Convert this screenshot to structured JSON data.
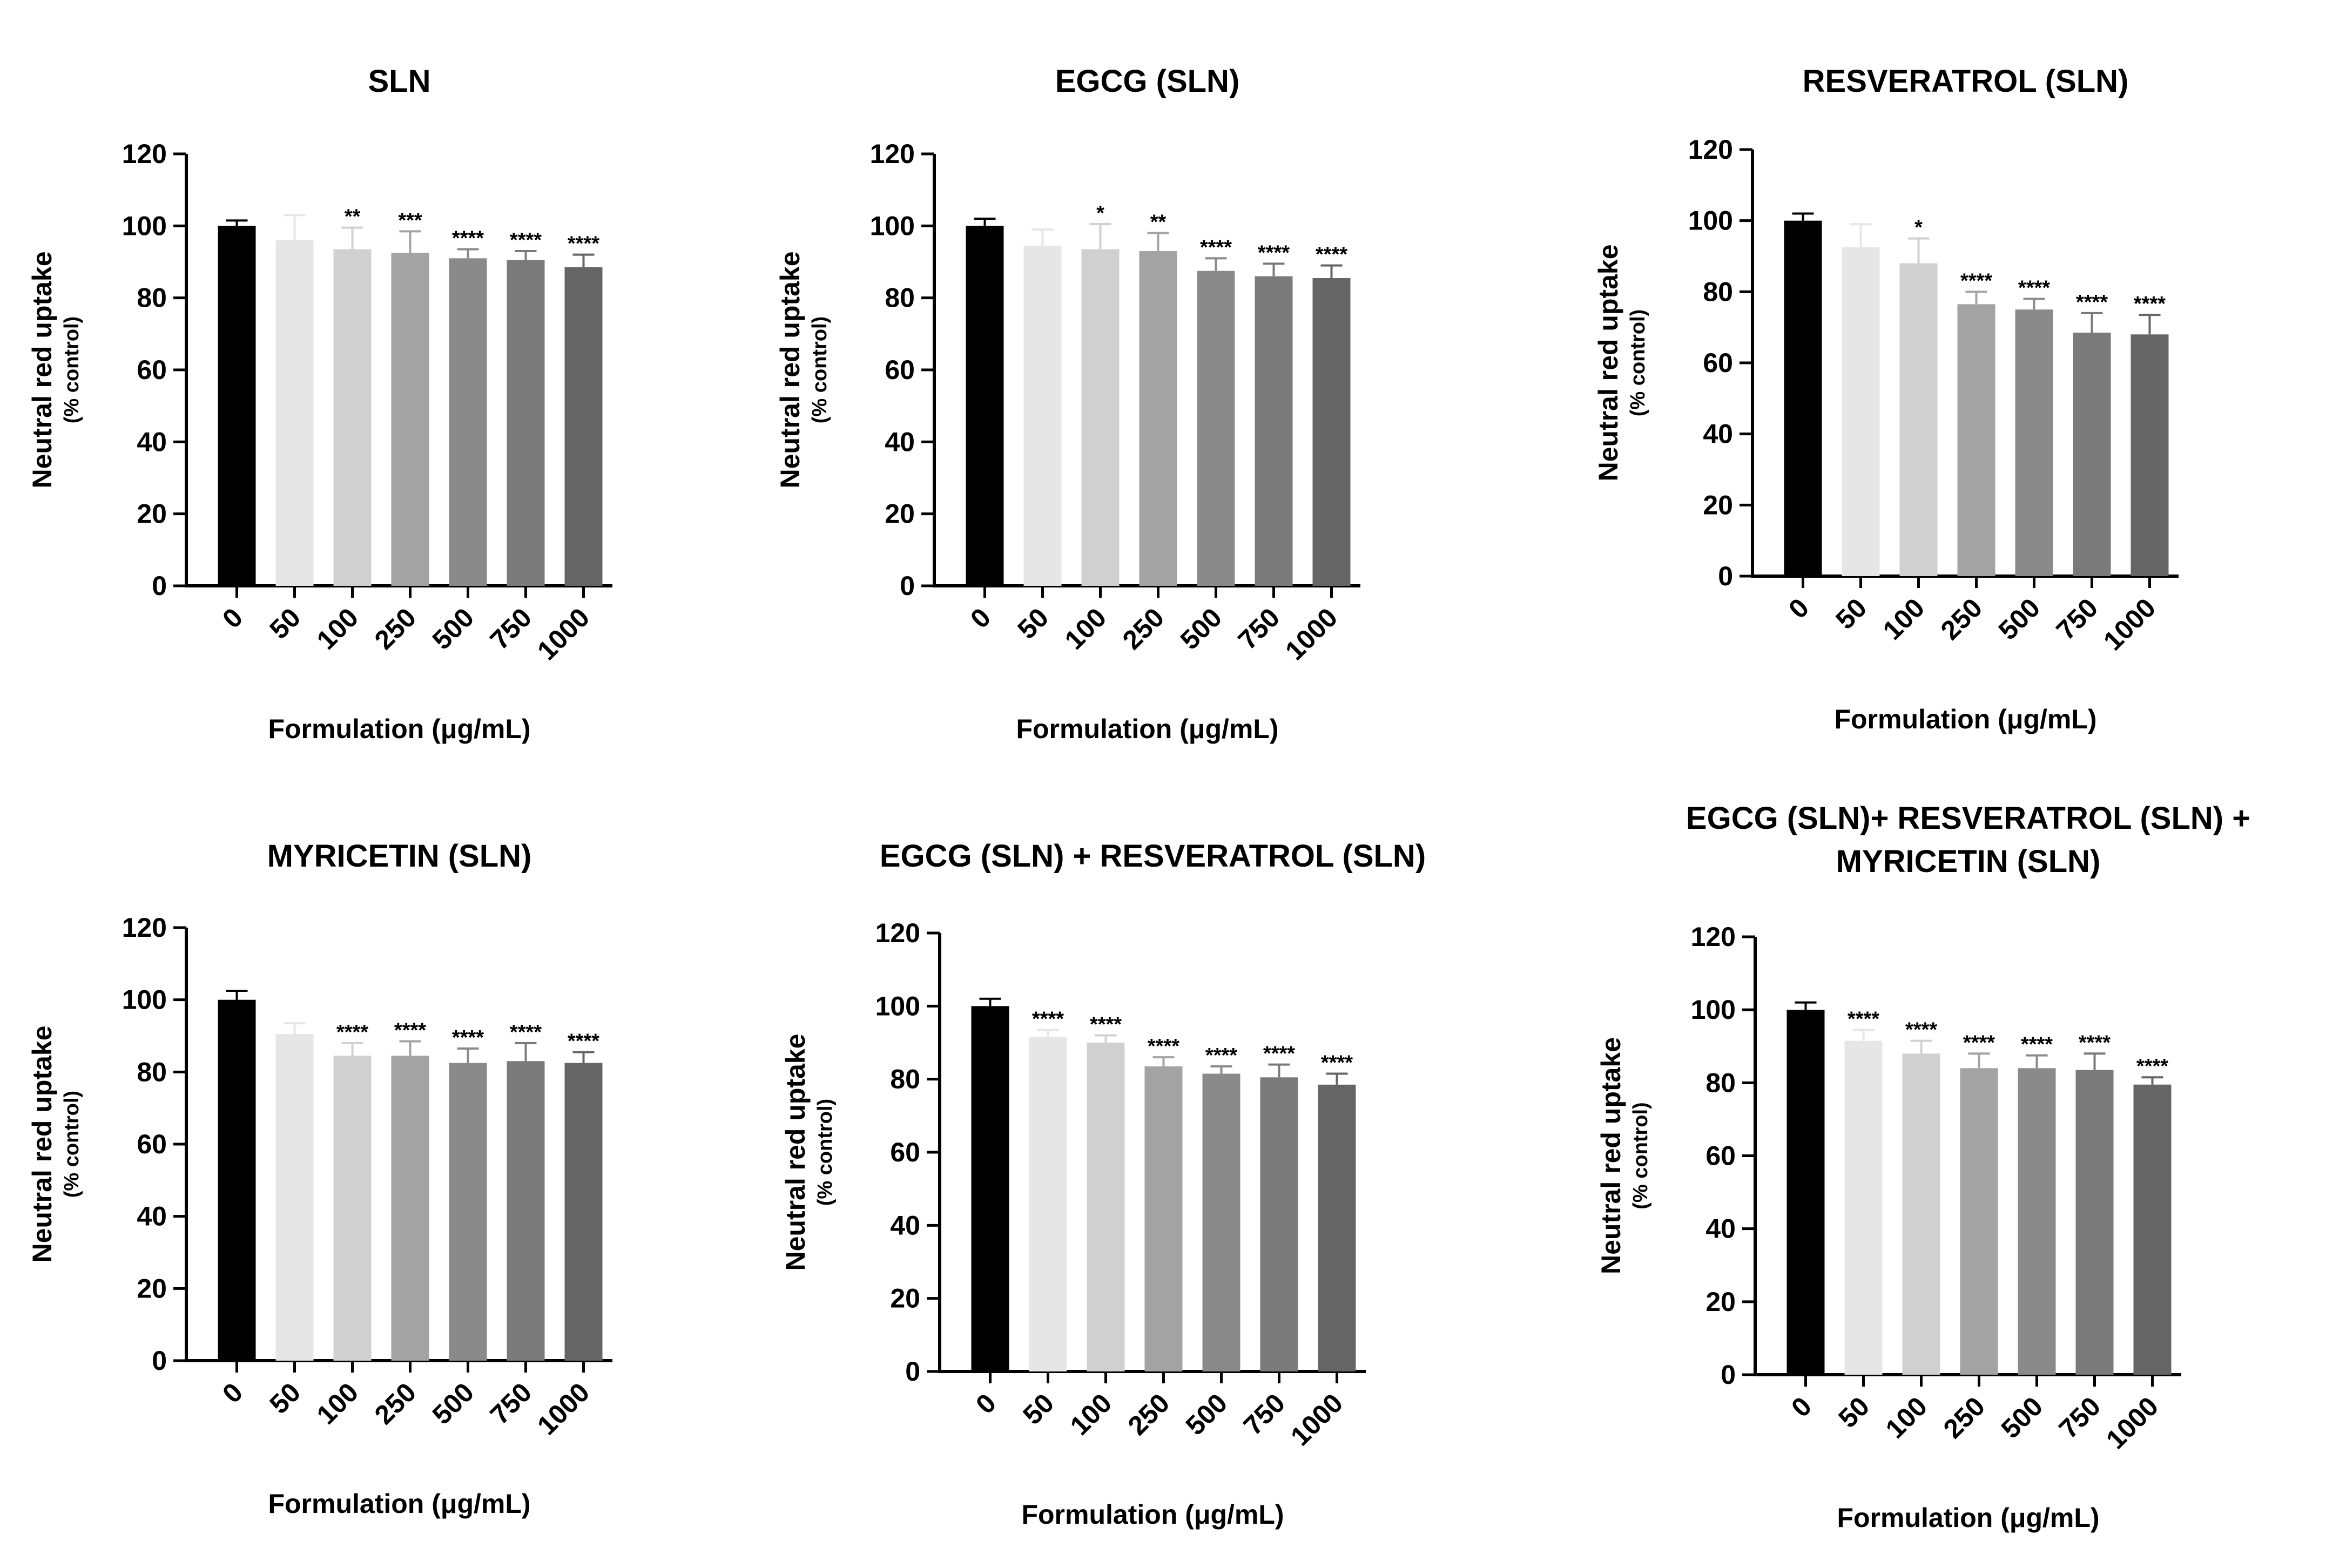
{
  "figure": {
    "x_axis_label": "Formulation (μg/mL)",
    "y_axis_label": "Neutral red uptake",
    "y_axis_sublabel": "(% control)"
  },
  "chart_data": [
    {
      "type": "bar",
      "title_lines": [
        "SLN"
      ],
      "xlabel": "Formulation (μg/mL)",
      "ylabel": "Neutral red uptake (% control)",
      "categories": [
        "0",
        "50",
        "100",
        "250",
        "500",
        "750",
        "1000"
      ],
      "values": [
        100,
        96,
        93.5,
        92.5,
        91,
        90.5,
        88.5
      ],
      "errors": [
        1.5,
        7,
        6,
        6,
        2.5,
        2.5,
        3.5
      ],
      "significance": [
        "",
        "",
        "**",
        "***",
        "****",
        "****",
        "****"
      ],
      "ylim": [
        0,
        120
      ],
      "yticks": [
        0,
        20,
        40,
        60,
        80,
        100,
        120
      ],
      "colors": [
        "#000000",
        "#e6e6e6",
        "#d0d0d0",
        "#a3a3a3",
        "#8a8a8a",
        "#7a7a7a",
        "#656565"
      ]
    },
    {
      "type": "bar",
      "title_lines": [
        "EGCG (SLN)"
      ],
      "xlabel": "Formulation (μg/mL)",
      "ylabel": "Neutral red uptake (% control)",
      "categories": [
        "0",
        "50",
        "100",
        "250",
        "500",
        "750",
        "1000"
      ],
      "values": [
        100,
        94.5,
        93.5,
        93,
        87.5,
        86,
        85.5
      ],
      "errors": [
        2,
        4.5,
        7,
        5,
        3.5,
        3.5,
        3.5
      ],
      "significance": [
        "",
        "",
        "*",
        "**",
        "****",
        "****",
        "****"
      ],
      "ylim": [
        0,
        120
      ],
      "yticks": [
        0,
        20,
        40,
        60,
        80,
        100,
        120
      ],
      "colors": [
        "#000000",
        "#e6e6e6",
        "#d0d0d0",
        "#a3a3a3",
        "#8a8a8a",
        "#7a7a7a",
        "#656565"
      ]
    },
    {
      "type": "bar",
      "title_lines": [
        "RESVERATROL (SLN)"
      ],
      "xlabel": "Formulation (μg/mL)",
      "ylabel": "Neutral red uptake (% control)",
      "categories": [
        "0",
        "50",
        "100",
        "250",
        "500",
        "750",
        "1000"
      ],
      "values": [
        100,
        92.5,
        88,
        76.5,
        75,
        68.5,
        68
      ],
      "errors": [
        2,
        6.5,
        7,
        3.5,
        3,
        5.5,
        5.5
      ],
      "significance": [
        "",
        "",
        "*",
        "****",
        "****",
        "****",
        "****"
      ],
      "ylim": [
        0,
        120
      ],
      "yticks": [
        0,
        20,
        40,
        60,
        80,
        100,
        120
      ],
      "colors": [
        "#000000",
        "#e6e6e6",
        "#d0d0d0",
        "#a3a3a3",
        "#8a8a8a",
        "#7a7a7a",
        "#656565"
      ]
    },
    {
      "type": "bar",
      "title_lines": [
        "MYRICETIN (SLN)"
      ],
      "xlabel": "Formulation (μg/mL)",
      "ylabel": "Neutral red uptake (% control)",
      "categories": [
        "0",
        "50",
        "100",
        "250",
        "500",
        "750",
        "1000"
      ],
      "values": [
        100,
        90.5,
        84.5,
        84.5,
        82.5,
        83,
        82.5
      ],
      "errors": [
        2.5,
        3,
        3.5,
        4,
        4,
        5,
        3
      ],
      "significance": [
        "",
        "",
        "****",
        "****",
        "****",
        "****",
        "****"
      ],
      "ylim": [
        0,
        120
      ],
      "yticks": [
        0,
        20,
        40,
        60,
        80,
        100,
        120
      ],
      "colors": [
        "#000000",
        "#e6e6e6",
        "#d0d0d0",
        "#a3a3a3",
        "#8a8a8a",
        "#7a7a7a",
        "#656565"
      ]
    },
    {
      "type": "bar",
      "title_lines": [
        "EGCG (SLN) + RESVERATROL (SLN)"
      ],
      "xlabel": "Formulation (μg/mL)",
      "ylabel": "Neutral red uptake (% control)",
      "categories": [
        "0",
        "50",
        "100",
        "250",
        "500",
        "750",
        "1000"
      ],
      "values": [
        100,
        91.5,
        90,
        83.5,
        81.5,
        80.5,
        78.5
      ],
      "errors": [
        2,
        2,
        2,
        2.5,
        2,
        3.5,
        3
      ],
      "significance": [
        "",
        "****",
        "****",
        "****",
        "****",
        "****",
        "****"
      ],
      "ylim": [
        0,
        120
      ],
      "yticks": [
        0,
        20,
        40,
        60,
        80,
        100,
        120
      ],
      "colors": [
        "#000000",
        "#e6e6e6",
        "#d0d0d0",
        "#a3a3a3",
        "#8a8a8a",
        "#7a7a7a",
        "#656565"
      ]
    },
    {
      "type": "bar",
      "title_lines": [
        "EGCG (SLN)+ RESVERATROL (SLN) +",
        "MYRICETIN (SLN)"
      ],
      "xlabel": "Formulation (μg/mL)",
      "ylabel": "Neutral red uptake (% control)",
      "categories": [
        "0",
        "50",
        "100",
        "250",
        "500",
        "750",
        "1000"
      ],
      "values": [
        100,
        91.5,
        88,
        84,
        84,
        83.5,
        79.5
      ],
      "errors": [
        2,
        3,
        3.5,
        4,
        3.5,
        4.5,
        2
      ],
      "significance": [
        "",
        "****",
        "****",
        "****",
        "****",
        "****",
        "****"
      ],
      "ylim": [
        0,
        120
      ],
      "yticks": [
        0,
        20,
        40,
        60,
        80,
        100,
        120
      ],
      "colors": [
        "#000000",
        "#e6e6e6",
        "#d0d0d0",
        "#a3a3a3",
        "#8a8a8a",
        "#7a7a7a",
        "#656565"
      ]
    }
  ]
}
